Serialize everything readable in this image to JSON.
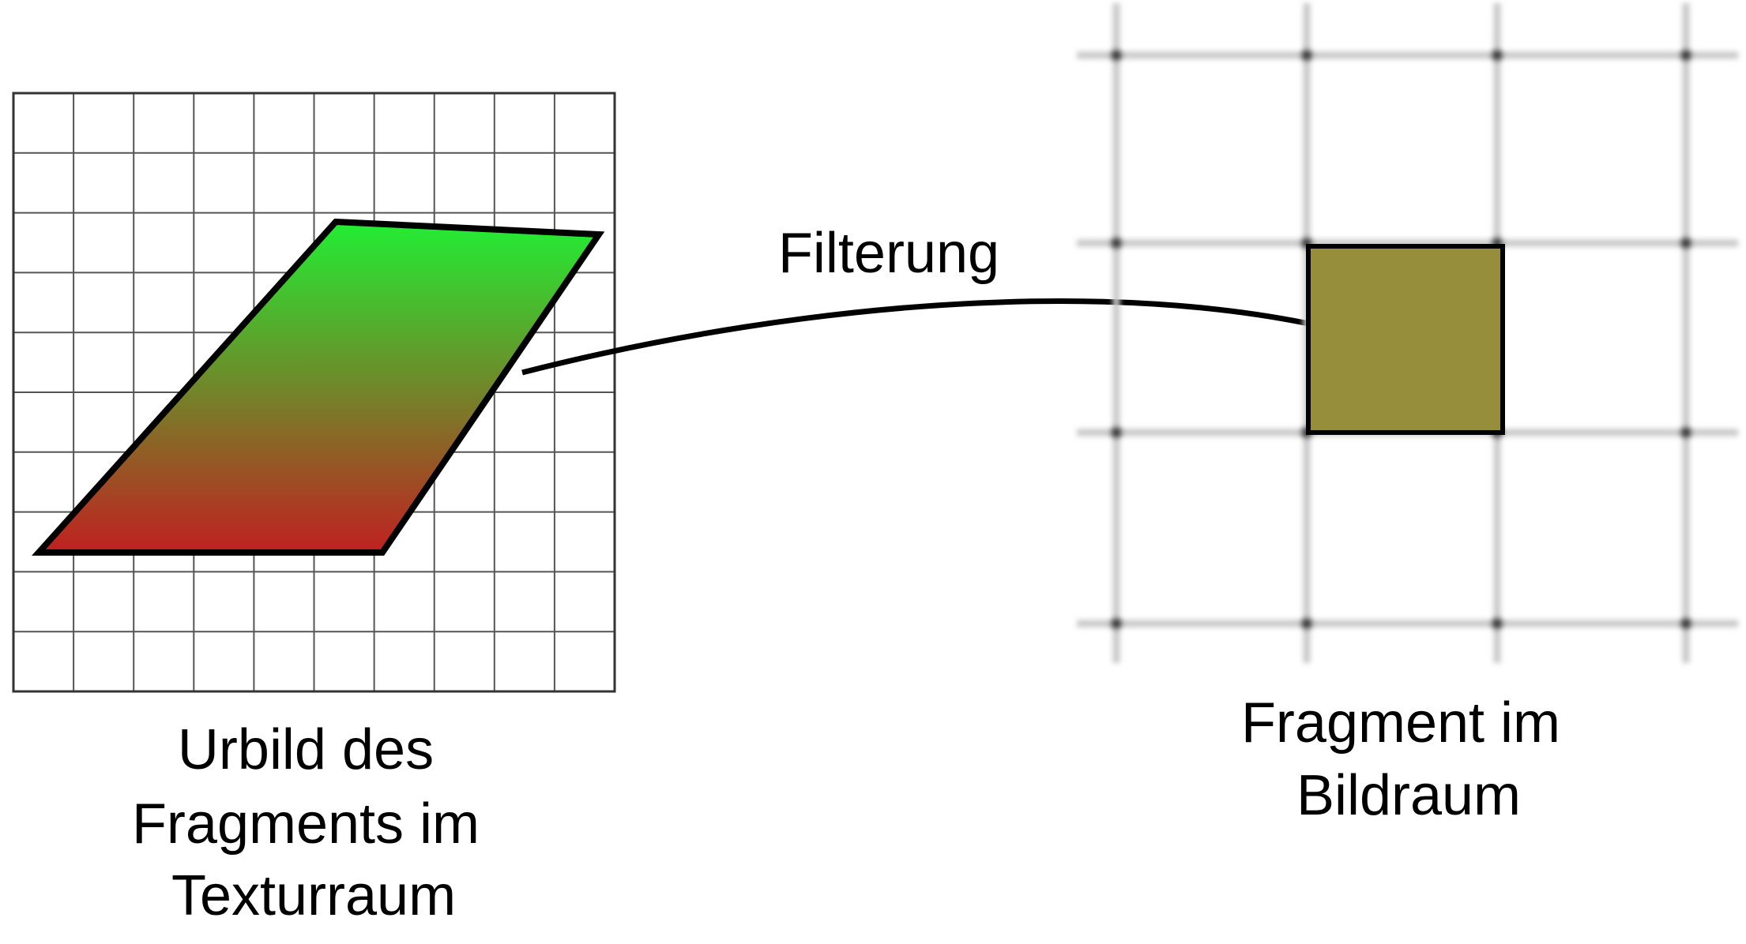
{
  "texture_space": {
    "caption_lines": [
      "Urbild des",
      "Fragments im",
      "Texturraum"
    ],
    "grid_divisions": 10,
    "gradient_top_color": "#22ee33",
    "gradient_bottom_color": "#c02020"
  },
  "arrow": {
    "label": "Filterung"
  },
  "image_space": {
    "caption_lines": [
      "Fragment im",
      "Bildraum"
    ],
    "pixel_color": "#968e3a",
    "grid_line_color": "#c8c8c8"
  }
}
